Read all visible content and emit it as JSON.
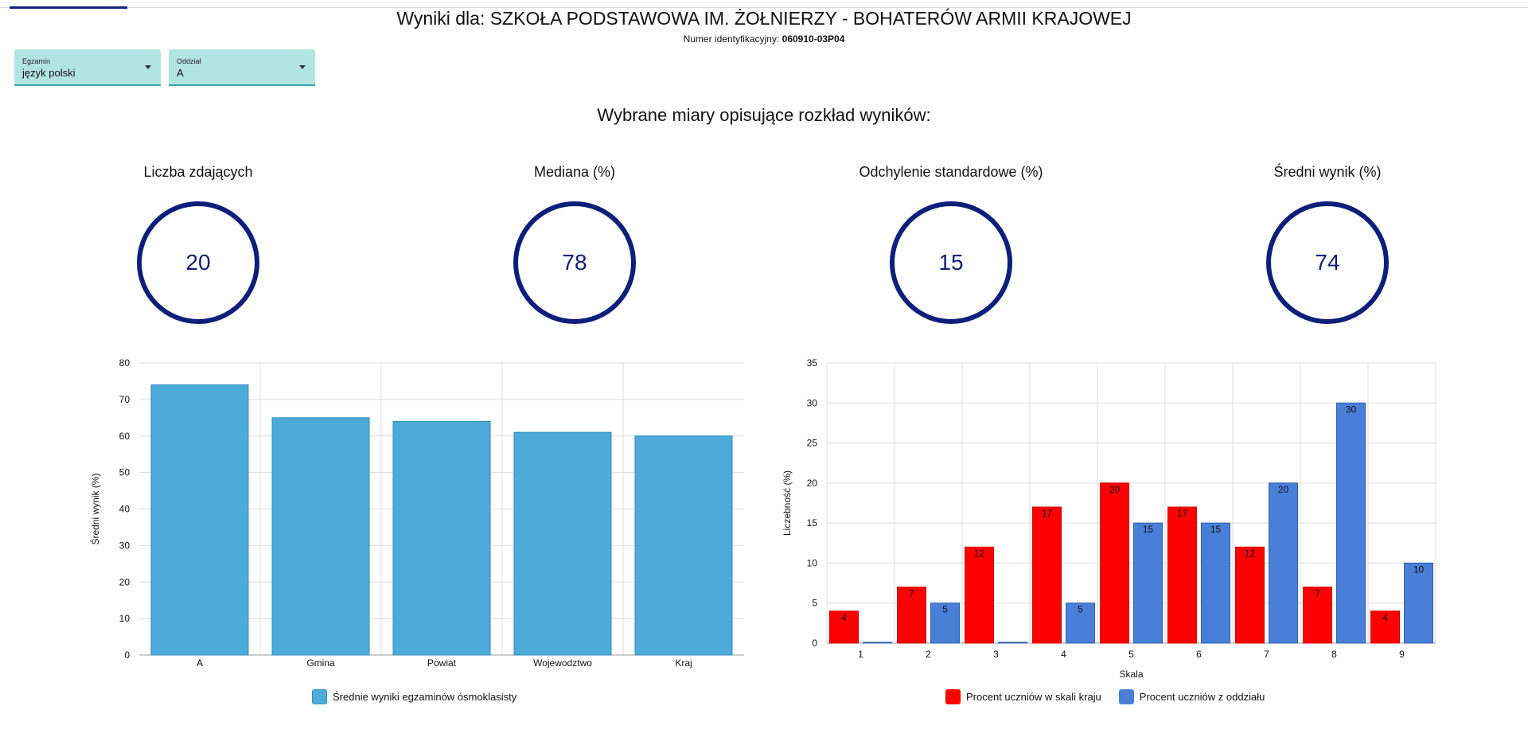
{
  "header": {
    "title": "Wyniki dla: SZKOŁA PODSTAWOWA IM. ŻOŁNIERZY - BOHATERÓW ARMII KRAJOWEJ",
    "id_label": "Numer identyfikacyjny:",
    "id_value": "060910-03P04"
  },
  "filters": {
    "exam": {
      "label": "Egzamin",
      "value": "język polski"
    },
    "section": {
      "label": "Oddział",
      "value": "A"
    }
  },
  "measures_title": "Wybrane miary opisujące rozkład wyników:",
  "stats": [
    {
      "label": "Liczba zdających",
      "value": "20"
    },
    {
      "label": "Mediana (%)",
      "value": "78"
    },
    {
      "label": "Odchylenie standardowe (%)",
      "value": "15"
    },
    {
      "label": "Średni wynik (%)",
      "value": "74"
    }
  ],
  "colors": {
    "ring": "#0d1f7a",
    "bar_avg": "#4eaad8",
    "bar_country": "#ff0000",
    "bar_section": "#4a7fd8",
    "select_bg": "#b2e4e2"
  },
  "chart_data": [
    {
      "type": "bar",
      "categories": [
        "A",
        "Gmina",
        "Powiat",
        "Wojewodztwo",
        "Kraj"
      ],
      "series": [
        {
          "name": "Średnie wyniki egzaminów ósmoklasisty",
          "values": [
            74,
            65,
            64,
            61,
            60
          ]
        }
      ],
      "ylabel": "Średni wynik (%)",
      "ylim": [
        0,
        80
      ],
      "yticks": [
        "0",
        "10",
        "20",
        "30",
        "40",
        "50",
        "60",
        "70",
        "80"
      ],
      "grid": true,
      "legend": "bottom"
    },
    {
      "type": "bar",
      "categories": [
        "1",
        "2",
        "3",
        "4",
        "5",
        "6",
        "7",
        "8",
        "9"
      ],
      "series": [
        {
          "name": "Procent uczniów w skali kraju",
          "values": [
            4,
            7,
            12,
            17,
            20,
            17,
            12,
            7,
            4
          ]
        },
        {
          "name": "Procent uczniów z oddziału",
          "values": [
            0,
            5,
            0,
            5,
            15,
            15,
            20,
            30,
            10
          ]
        }
      ],
      "xlabel": "Skala",
      "ylabel": "Liczebność (%)",
      "ylim": [
        0,
        35
      ],
      "yticks": [
        "0",
        "5",
        "10",
        "15",
        "20",
        "25",
        "30",
        "35"
      ],
      "grid": true,
      "legend": "bottom"
    }
  ]
}
